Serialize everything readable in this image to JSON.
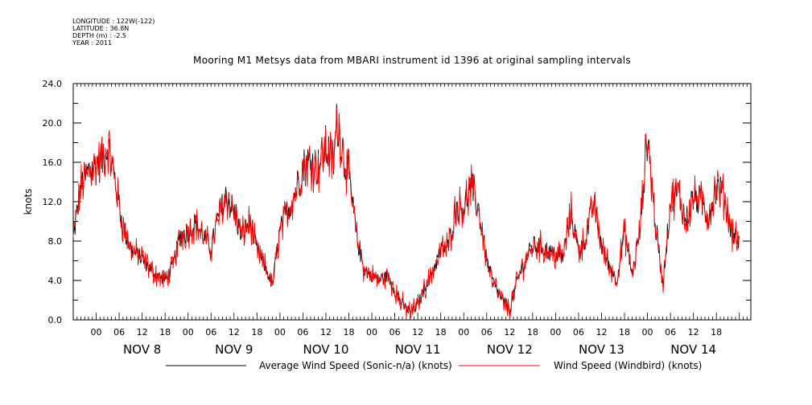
{
  "header": {
    "longitude_line": "LONGITUDE : 122W(-122)",
    "latitude_line": "LATITUDE : 36.8N",
    "depth_line": "DEPTH (m) : -2.5",
    "year_line": "YEAR : 2011"
  },
  "chart_data": {
    "type": "line",
    "title": "Mooring M1 Metsys data from MBARI instrument id 1396 at original sampling intervals",
    "ylabel": "knots",
    "xlabel": "",
    "ylim": [
      0,
      24
    ],
    "xlim_hours": [
      -6,
      171
    ],
    "grid": false,
    "legend_position": "bottom",
    "y_ticks": [
      "0.0",
      "4.0",
      "8.0",
      "12.0",
      "16.0",
      "20.0",
      "24.0"
    ],
    "x_tick_labels": [
      "00",
      "06",
      "12",
      "18",
      "00",
      "06",
      "12",
      "18",
      "00",
      "06",
      "12",
      "18",
      "00",
      "06",
      "12",
      "18",
      "00",
      "06",
      "12",
      "18",
      "00",
      "06",
      "12",
      "18",
      "00",
      "06",
      "12",
      "18"
    ],
    "day_labels": [
      "NOV  8",
      "NOV  9",
      "NOV 10",
      "NOV 11",
      "NOV 12",
      "NOV 13",
      "NOV 14"
    ],
    "series": [
      {
        "name": "Average Wind Speed (Sonic-n/a) (knots)",
        "color": "#000000",
        "anchors": [
          [
            -6,
            8.3
          ],
          [
            -4,
            13.5
          ],
          [
            -2,
            15.0
          ],
          [
            0,
            15.8
          ],
          [
            2,
            16.5
          ],
          [
            3,
            17.8
          ],
          [
            5,
            14.0
          ],
          [
            7,
            9.5
          ],
          [
            9,
            7.2
          ],
          [
            12,
            6.2
          ],
          [
            14,
            5.2
          ],
          [
            16,
            4.5
          ],
          [
            18,
            4.0
          ],
          [
            20,
            5.5
          ],
          [
            22,
            8.5
          ],
          [
            24,
            9.0
          ],
          [
            26,
            9.8
          ],
          [
            28,
            8.5
          ],
          [
            30,
            7.2
          ],
          [
            32,
            10.5
          ],
          [
            34,
            12.5
          ],
          [
            36,
            11.0
          ],
          [
            38,
            8.5
          ],
          [
            40,
            10.0
          ],
          [
            42,
            7.0
          ],
          [
            44,
            5.5
          ],
          [
            46,
            3.5
          ],
          [
            48,
            9.0
          ],
          [
            50,
            11.0
          ],
          [
            52,
            13.0
          ],
          [
            54,
            15.5
          ],
          [
            56,
            16.0
          ],
          [
            58,
            15.5
          ],
          [
            60,
            17.5
          ],
          [
            62,
            16.0
          ],
          [
            63,
            20.5
          ],
          [
            64,
            18.0
          ],
          [
            66,
            14.5
          ],
          [
            68,
            8.5
          ],
          [
            70,
            5.0
          ],
          [
            72,
            4.5
          ],
          [
            74,
            4.0
          ],
          [
            76,
            4.5
          ],
          [
            78,
            3.0
          ],
          [
            80,
            1.5
          ],
          [
            82,
            0.8
          ],
          [
            84,
            1.5
          ],
          [
            86,
            3.5
          ],
          [
            88,
            5.0
          ],
          [
            90,
            7.0
          ],
          [
            92,
            7.5
          ],
          [
            94,
            11.5
          ],
          [
            96,
            11.5
          ],
          [
            98,
            13.5
          ],
          [
            100,
            11.0
          ],
          [
            102,
            6.0
          ],
          [
            104,
            3.5
          ],
          [
            106,
            2.0
          ],
          [
            108,
            1.0
          ],
          [
            110,
            4.0
          ],
          [
            112,
            6.0
          ],
          [
            114,
            7.5
          ],
          [
            116,
            7.5
          ],
          [
            118,
            7.0
          ],
          [
            120,
            6.5
          ],
          [
            122,
            6.5
          ],
          [
            124,
            11.0
          ],
          [
            126,
            7.0
          ],
          [
            128,
            8.5
          ],
          [
            130,
            12.0
          ],
          [
            132,
            7.5
          ],
          [
            134,
            5.5
          ],
          [
            136,
            4.0
          ],
          [
            138,
            9.0
          ],
          [
            140,
            4.5
          ],
          [
            142,
            9.0
          ],
          [
            144,
            19.0
          ],
          [
            146,
            10.0
          ],
          [
            148,
            3.5
          ],
          [
            150,
            12.0
          ],
          [
            152,
            13.0
          ],
          [
            154,
            10.0
          ],
          [
            156,
            12.5
          ],
          [
            158,
            12.0
          ],
          [
            160,
            10.5
          ],
          [
            162,
            13.5
          ],
          [
            164,
            12.5
          ],
          [
            166,
            9.0
          ],
          [
            168,
            8.0
          ]
        ]
      },
      {
        "name": "Wind Speed (Windbird) (knots)",
        "color": "#ff0000",
        "anchors": []
      }
    ]
  }
}
